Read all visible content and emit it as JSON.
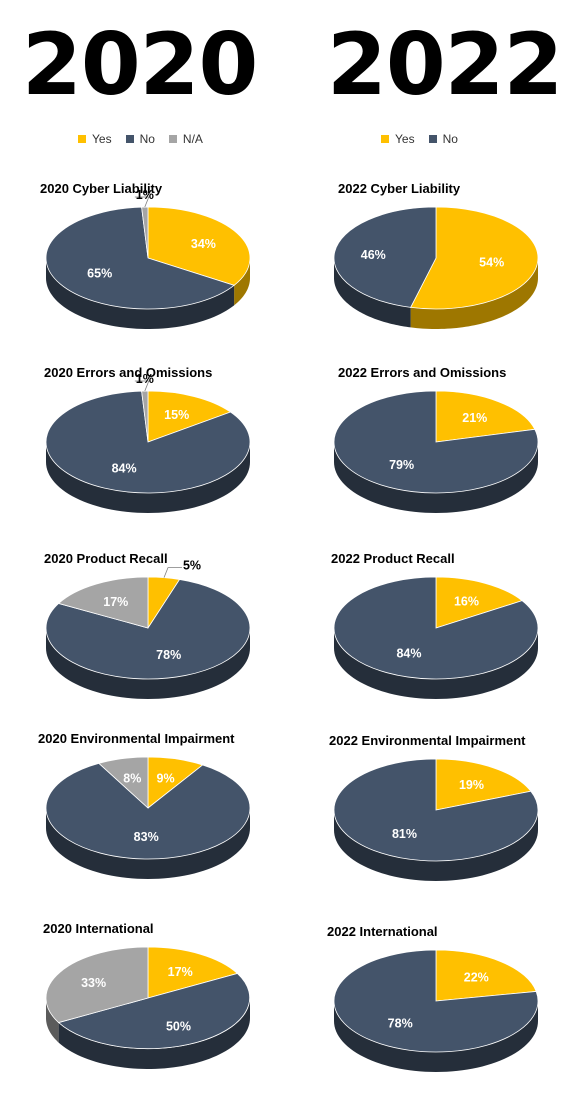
{
  "headers": {
    "left_year": "2020",
    "right_year": "2022"
  },
  "colors": {
    "yes": "#ffc000",
    "no": "#44546a",
    "na": "#a5a5a5"
  },
  "legends": {
    "left": [
      {
        "label": "Yes",
        "key": "yes"
      },
      {
        "label": "No",
        "key": "no"
      },
      {
        "label": "N/A",
        "key": "na"
      }
    ],
    "right": [
      {
        "label": "Yes",
        "key": "yes"
      },
      {
        "label": "No",
        "key": "no"
      }
    ]
  },
  "chart_data": [
    {
      "type": "pie",
      "title": "2020 Cyber Liability",
      "slices": [
        {
          "label": "Yes",
          "value": 34
        },
        {
          "label": "No",
          "value": 65
        },
        {
          "label": "N/A",
          "value": 1
        }
      ]
    },
    {
      "type": "pie",
      "title": "2022 Cyber Liability",
      "slices": [
        {
          "label": "Yes",
          "value": 54
        },
        {
          "label": "No",
          "value": 46
        }
      ]
    },
    {
      "type": "pie",
      "title": "2020 Errors and Omissions",
      "slices": [
        {
          "label": "Yes",
          "value": 15
        },
        {
          "label": "No",
          "value": 84
        },
        {
          "label": "N/A",
          "value": 1
        }
      ]
    },
    {
      "type": "pie",
      "title": "2022 Errors and Omissions",
      "slices": [
        {
          "label": "Yes",
          "value": 21
        },
        {
          "label": "No",
          "value": 79
        }
      ]
    },
    {
      "type": "pie",
      "title": "2020 Product Recall",
      "slices": [
        {
          "label": "Yes",
          "value": 5
        },
        {
          "label": "No",
          "value": 78
        },
        {
          "label": "N/A",
          "value": 17
        }
      ]
    },
    {
      "type": "pie",
      "title": "2022 Product Recall",
      "slices": [
        {
          "label": "Yes",
          "value": 16
        },
        {
          "label": "No",
          "value": 84
        }
      ]
    },
    {
      "type": "pie",
      "title": "2020 Environmental Impairment",
      "slices": [
        {
          "label": "Yes",
          "value": 9
        },
        {
          "label": "No",
          "value": 83
        },
        {
          "label": "N/A",
          "value": 8
        }
      ]
    },
    {
      "type": "pie",
      "title": "2022 Environmental Impairment",
      "slices": [
        {
          "label": "Yes",
          "value": 19
        },
        {
          "label": "No",
          "value": 81
        }
      ]
    },
    {
      "type": "pie",
      "title": "2020 International",
      "slices": [
        {
          "label": "Yes",
          "value": 17
        },
        {
          "label": "No",
          "value": 50
        },
        {
          "label": "N/A",
          "value": 33
        }
      ]
    },
    {
      "type": "pie",
      "title": "2022 International",
      "slices": [
        {
          "label": "Yes",
          "value": 22
        },
        {
          "label": "No",
          "value": 78
        }
      ]
    }
  ]
}
